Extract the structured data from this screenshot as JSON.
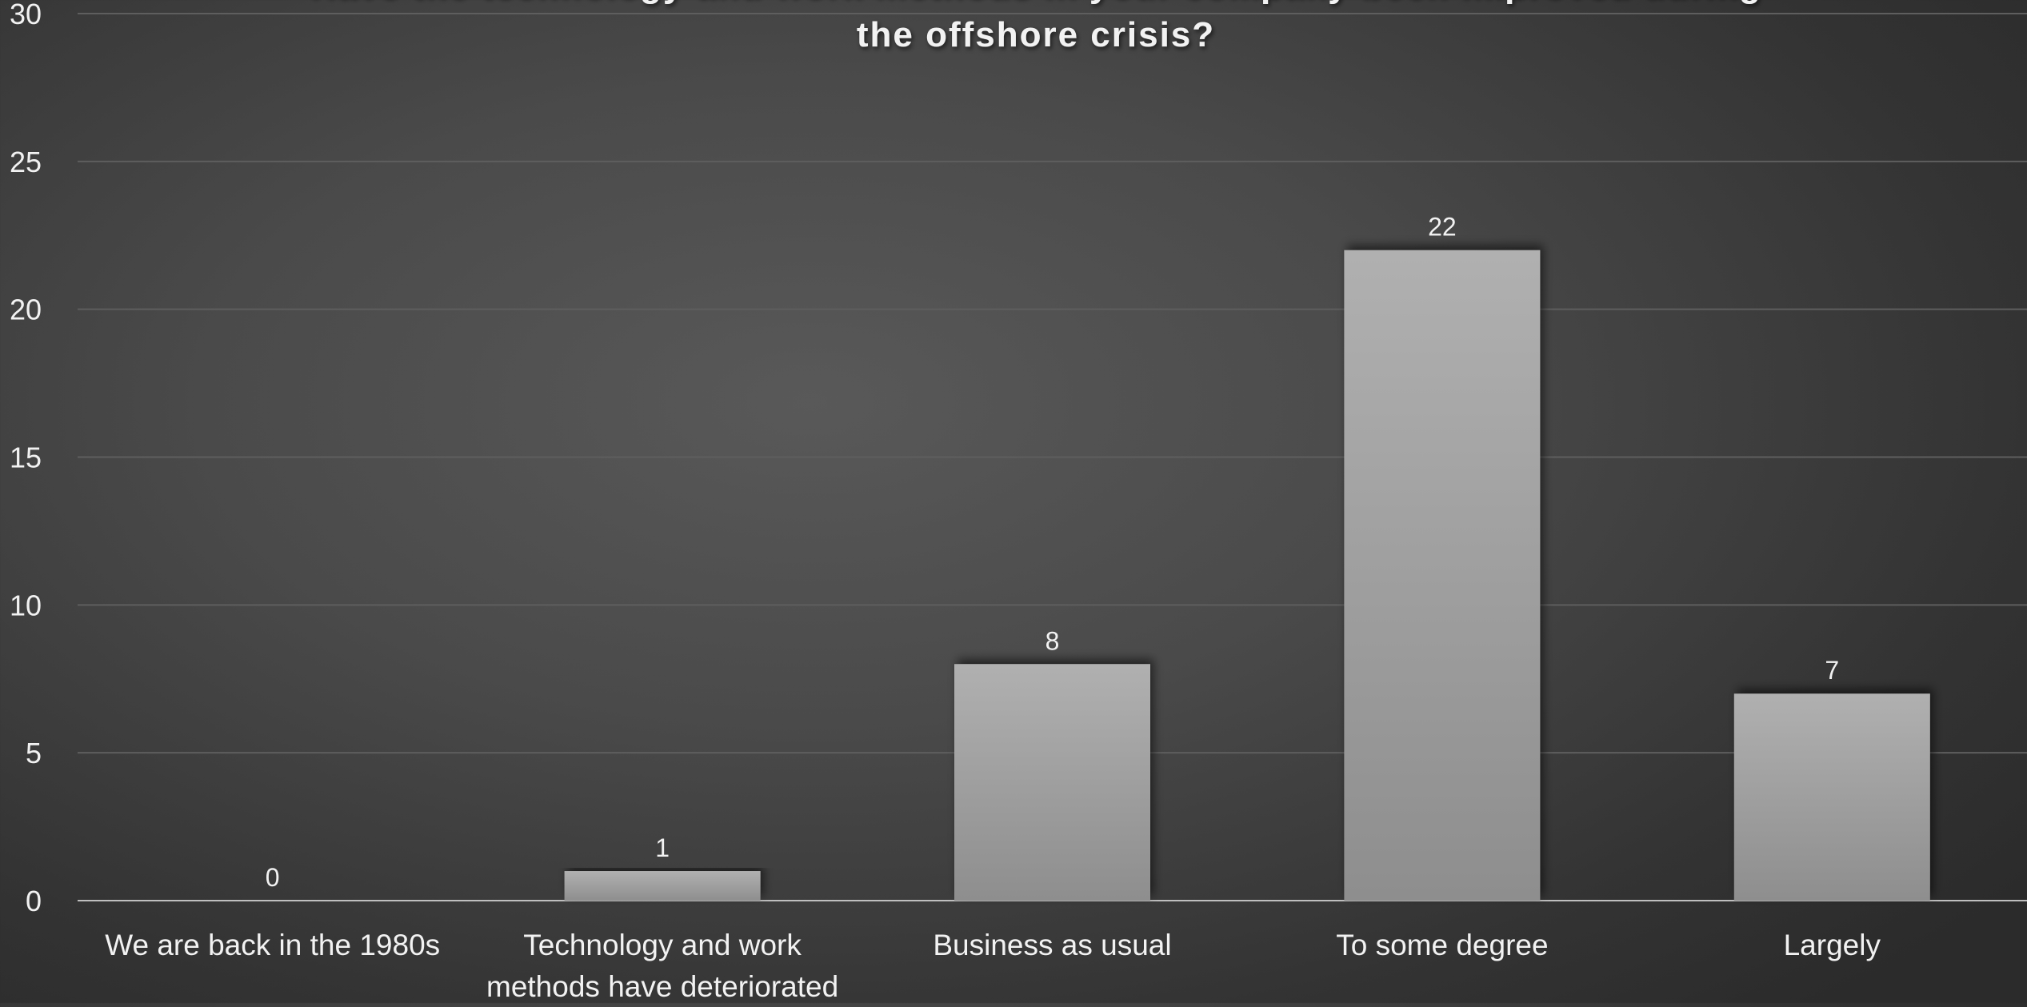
{
  "chart_data": {
    "type": "bar",
    "title_lines": [
      "Have the technology and work methods in your company been improved during",
      "the offshore crisis?"
    ],
    "categories": [
      [
        "We are back in the 1980s"
      ],
      [
        "Technology and work",
        "methods have deteriorated"
      ],
      [
        "Business as usual"
      ],
      [
        "To some degree"
      ],
      [
        "Largely"
      ]
    ],
    "values": [
      0,
      1,
      8,
      22,
      7
    ],
    "data_labels": [
      "0",
      "1",
      "8",
      "22",
      "7"
    ],
    "ylim": [
      0,
      30
    ],
    "yticks": [
      "0",
      "5",
      "10",
      "15",
      "20",
      "25",
      "30"
    ],
    "xlabel": "",
    "ylabel": "",
    "grid": true,
    "legend": "none",
    "colors": {
      "bar_top": "#b0b0b0",
      "bar_bottom": "#8e8e8e",
      "text": "#f2f2f2",
      "gridline": "#5e5e5e",
      "axis": "#bfbfbf"
    }
  }
}
